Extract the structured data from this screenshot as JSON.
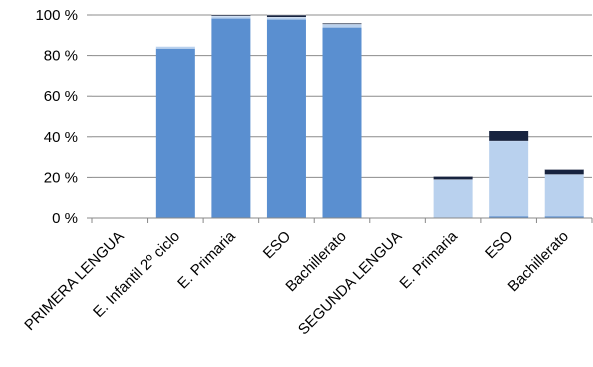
{
  "chart_data": {
    "type": "bar",
    "stacked": true,
    "categories": [
      "PRIMERA LENGUA",
      "E. Infantil 2º ciclo",
      "E. Primaria",
      "ESO",
      "Bachillerato",
      "SEGUNDA LENGUA",
      "E. Primaria",
      "ESO",
      "Bachillerato"
    ],
    "series": [
      {
        "color": "#5a8fd0",
        "values": [
          0,
          83.5,
          98.5,
          98.0,
          94.0,
          0,
          0,
          1.0,
          1.0
        ]
      },
      {
        "color": "#b9d1ee",
        "values": [
          0,
          1.0,
          1.0,
          1.0,
          1.5,
          0,
          19.0,
          37.0,
          20.5
        ]
      },
      {
        "color": "#17233f",
        "values": [
          0,
          0,
          0.5,
          1.0,
          0.5,
          0,
          1.5,
          5.0,
          2.5
        ]
      }
    ],
    "y_ticks": [
      "0 %",
      "20 %",
      "40 %",
      "60 %",
      "80 %",
      "100 %"
    ],
    "ylim": [
      0,
      100
    ],
    "grid": true,
    "legend": "none"
  }
}
